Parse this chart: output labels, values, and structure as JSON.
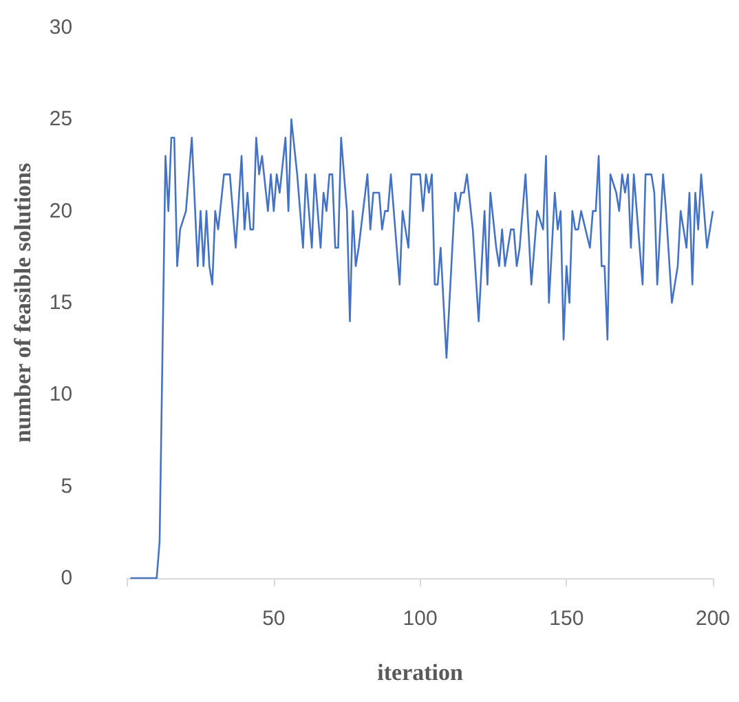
{
  "chart_data": {
    "type": "line",
    "xlabel": "iteration",
    "ylabel": "number of feasible solutions",
    "xlim": [
      0,
      200
    ],
    "xticks": [
      {
        "value": 0,
        "label": null
      },
      50,
      100,
      150,
      200
    ],
    "ylim": [
      0,
      30
    ],
    "yticks": [
      0,
      5,
      10,
      15,
      20,
      25,
      30
    ],
    "marker": "none",
    "line_style": "solid",
    "x": [
      1,
      10,
      11,
      13,
      14,
      15,
      16,
      17,
      18,
      20,
      22,
      24,
      25,
      26,
      27,
      28,
      29,
      30,
      31,
      33,
      35,
      37,
      39,
      40,
      41,
      42,
      43,
      44,
      45,
      46,
      48,
      49,
      50,
      51,
      52,
      54,
      55,
      56,
      58,
      60,
      61,
      63,
      64,
      66,
      67,
      68,
      69,
      70,
      71,
      72,
      73,
      75,
      76,
      77,
      78,
      79,
      82,
      83,
      84,
      86,
      87,
      88,
      89,
      90,
      93,
      94,
      96,
      97,
      99,
      100,
      101,
      102,
      103,
      104,
      105,
      106,
      107,
      109,
      112,
      113,
      114,
      115,
      116,
      118,
      120,
      122,
      123,
      124,
      126,
      127,
      128,
      129,
      130,
      131,
      132,
      133,
      134,
      136,
      138,
      140,
      142,
      143,
      144,
      146,
      147,
      148,
      149,
      150,
      151,
      152,
      153,
      154,
      155,
      158,
      159,
      160,
      161,
      162,
      163,
      164,
      165,
      167,
      168,
      169,
      170,
      171,
      172,
      173,
      176,
      177,
      179,
      180,
      181,
      183,
      184,
      186,
      188,
      189,
      191,
      192,
      193,
      194,
      195,
      196,
      198,
      200
    ],
    "series": [
      {
        "color": "#4472c4",
        "values": [
          0,
          0,
          2,
          23,
          20,
          24,
          24,
          17,
          19,
          20,
          24,
          17,
          20,
          17,
          20,
          17,
          16,
          20,
          19,
          22,
          22,
          18,
          23,
          19,
          21,
          19,
          19,
          24,
          22,
          23,
          20,
          22,
          20,
          22,
          21,
          24,
          20,
          25,
          22,
          18,
          22,
          18,
          22,
          18,
          21,
          20,
          22,
          22,
          18,
          18,
          24,
          20,
          14,
          20,
          17,
          18,
          22,
          19,
          21,
          21,
          19,
          20,
          20,
          22,
          16,
          20,
          18,
          22,
          22,
          22,
          20,
          22,
          21,
          22,
          16,
          16,
          18,
          12,
          21,
          20,
          21,
          21,
          22,
          19,
          14,
          20,
          16,
          21,
          18,
          17,
          19,
          17,
          18,
          19,
          19,
          17,
          18,
          22,
          16,
          20,
          19,
          23,
          15,
          21,
          19,
          20,
          13,
          17,
          15,
          20,
          19,
          19,
          20,
          18,
          20,
          20,
          23,
          17,
          17,
          13,
          22,
          21,
          20,
          22,
          21,
          22,
          18,
          22,
          16,
          22,
          22,
          21,
          16,
          22,
          20,
          15,
          17,
          20,
          18,
          21,
          16,
          21,
          19,
          22,
          18,
          20
        ]
      }
    ]
  }
}
